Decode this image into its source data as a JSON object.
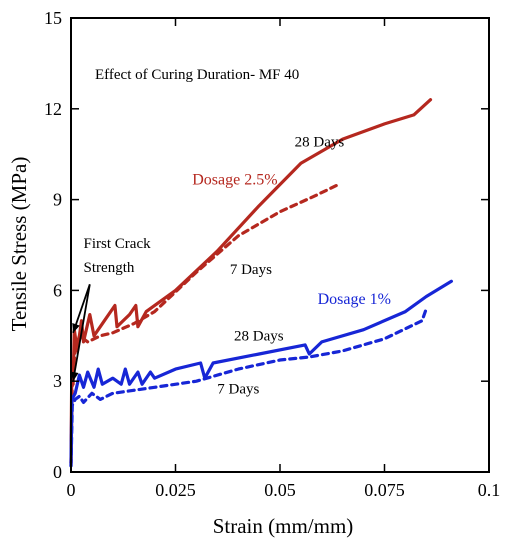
{
  "chart_data": {
    "type": "line",
    "title": "Effect of Curing Duration- MF 40",
    "xlabel": "Strain (mm/mm)",
    "ylabel": "Tensile Stress (MPa)",
    "xlim": [
      0,
      0.1
    ],
    "ylim": [
      0,
      15
    ],
    "xticks": [
      0,
      0.025,
      0.05,
      0.075,
      0.1
    ],
    "xtick_labels": [
      "0",
      "0.025",
      "0.05",
      "0.075",
      "0.1"
    ],
    "yticks": [
      0,
      3,
      6,
      9,
      12,
      15
    ],
    "ytick_labels": [
      "0",
      "3",
      "6",
      "9",
      "12",
      "15"
    ],
    "grid": false,
    "series": [
      {
        "name": "28 Days",
        "color": "#b5281f",
        "dash": "solid",
        "points": [
          [
            0,
            0.3
          ],
          [
            0.0002,
            3.5
          ],
          [
            0.0005,
            2.9
          ],
          [
            0.0008,
            4.7
          ],
          [
            0.0015,
            4.0
          ],
          [
            0.0025,
            5.0
          ],
          [
            0.003,
            4.3
          ],
          [
            0.0045,
            5.2
          ],
          [
            0.0055,
            4.5
          ],
          [
            0.008,
            5.0
          ],
          [
            0.0105,
            5.5
          ],
          [
            0.011,
            4.8
          ],
          [
            0.014,
            5.2
          ],
          [
            0.0155,
            5.5
          ],
          [
            0.016,
            4.8
          ],
          [
            0.018,
            5.3
          ],
          [
            0.025,
            6.0
          ],
          [
            0.035,
            7.3
          ],
          [
            0.045,
            8.8
          ],
          [
            0.055,
            10.2
          ],
          [
            0.065,
            11.0
          ],
          [
            0.075,
            11.5
          ],
          [
            0.082,
            11.8
          ],
          [
            0.086,
            12.3
          ]
        ]
      },
      {
        "name": "7 Days",
        "color": "#b5281f",
        "dash": "dashed",
        "points": [
          [
            0,
            0.3
          ],
          [
            0.0003,
            3.0
          ],
          [
            0.001,
            4.0
          ],
          [
            0.002,
            4.5
          ],
          [
            0.004,
            4.3
          ],
          [
            0.007,
            4.5
          ],
          [
            0.01,
            4.6
          ],
          [
            0.015,
            4.9
          ],
          [
            0.02,
            5.3
          ],
          [
            0.03,
            6.6
          ],
          [
            0.04,
            7.8
          ],
          [
            0.05,
            8.6
          ],
          [
            0.058,
            9.1
          ],
          [
            0.064,
            9.5
          ]
        ]
      },
      {
        "name": "28 Days",
        "color": "#1726d6",
        "dash": "solid",
        "points": [
          [
            0,
            0.2
          ],
          [
            0.0002,
            2.4
          ],
          [
            0.001,
            2.6
          ],
          [
            0.002,
            3.2
          ],
          [
            0.003,
            2.8
          ],
          [
            0.004,
            3.3
          ],
          [
            0.0055,
            2.8
          ],
          [
            0.0065,
            3.4
          ],
          [
            0.0075,
            2.9
          ],
          [
            0.01,
            3.1
          ],
          [
            0.012,
            2.9
          ],
          [
            0.013,
            3.4
          ],
          [
            0.014,
            2.9
          ],
          [
            0.016,
            3.3
          ],
          [
            0.017,
            2.9
          ],
          [
            0.019,
            3.3
          ],
          [
            0.02,
            3.1
          ],
          [
            0.025,
            3.4
          ],
          [
            0.031,
            3.6
          ],
          [
            0.032,
            3.1
          ],
          [
            0.034,
            3.6
          ],
          [
            0.045,
            3.9
          ],
          [
            0.056,
            4.2
          ],
          [
            0.057,
            3.9
          ],
          [
            0.06,
            4.3
          ],
          [
            0.07,
            4.7
          ],
          [
            0.08,
            5.3
          ],
          [
            0.085,
            5.8
          ],
          [
            0.091,
            6.3
          ]
        ]
      },
      {
        "name": "7 Days",
        "color": "#1726d6",
        "dash": "dashed",
        "points": [
          [
            0,
            0.2
          ],
          [
            0.0003,
            2.2
          ],
          [
            0.001,
            2.4
          ],
          [
            0.002,
            2.5
          ],
          [
            0.003,
            2.3
          ],
          [
            0.005,
            2.6
          ],
          [
            0.007,
            2.4
          ],
          [
            0.01,
            2.6
          ],
          [
            0.015,
            2.7
          ],
          [
            0.02,
            2.8
          ],
          [
            0.03,
            3.0
          ],
          [
            0.04,
            3.4
          ],
          [
            0.05,
            3.7
          ],
          [
            0.057,
            3.8
          ],
          [
            0.065,
            4.0
          ],
          [
            0.075,
            4.4
          ],
          [
            0.084,
            5.0
          ],
          [
            0.085,
            5.4
          ]
        ]
      }
    ],
    "annotations": [
      {
        "id": "first-crack-1",
        "text": "First Crack",
        "color": "#000000",
        "x": 0.003,
        "y": 7.4,
        "size": 15
      },
      {
        "id": "first-crack-2",
        "text": "Strength",
        "color": "#000000",
        "x": 0.003,
        "y": 6.6,
        "size": 15
      },
      {
        "id": "red-28",
        "text": "28 Days",
        "color": "#000000",
        "x": 0.0535,
        "y": 10.75,
        "size": 15
      },
      {
        "id": "red-7",
        "text": "7 Days",
        "color": "#000000",
        "x": 0.038,
        "y": 6.55,
        "size": 15
      },
      {
        "id": "dosage-25",
        "text": "Dosage 2.5%",
        "color": "#b5281f",
        "x": 0.029,
        "y": 9.5,
        "size": 16
      },
      {
        "id": "dosage-1",
        "text": "Dosage 1%",
        "color": "#1726d6",
        "x": 0.059,
        "y": 5.55,
        "size": 16
      },
      {
        "id": "blue-28",
        "text": "28 Days",
        "color": "#000000",
        "x": 0.039,
        "y": 4.35,
        "size": 15
      },
      {
        "id": "blue-7",
        "text": "7 Days",
        "color": "#000000",
        "x": 0.035,
        "y": 2.6,
        "size": 15
      }
    ],
    "arrows": [
      {
        "from": [
          0.0045,
          6.2
        ],
        "to": [
          0.0005,
          4.6
        ]
      },
      {
        "from": [
          0.0045,
          6.2
        ],
        "to": [
          0.0005,
          3.0
        ]
      }
    ]
  }
}
